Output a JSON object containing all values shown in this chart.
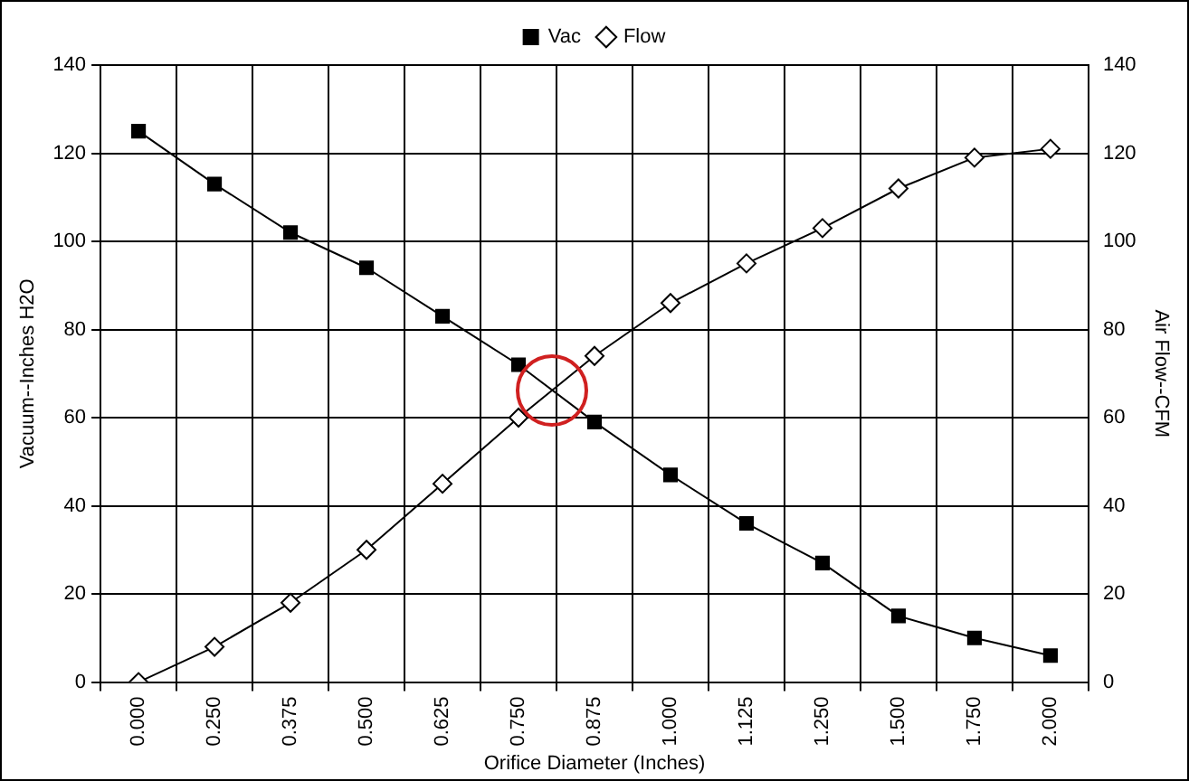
{
  "chart_data": {
    "type": "line",
    "xlabel": "Orifice Diameter (Inches)",
    "ylabel": "Vacuum--Inches H2O",
    "y2label": "Air Flow--CFM",
    "categories": [
      "0.000",
      "0.250",
      "0.375",
      "0.500",
      "0.625",
      "0.750",
      "0.875",
      "1.000",
      "1.125",
      "1.250",
      "1.500",
      "1.750",
      "2.000"
    ],
    "series": [
      {
        "name": "Vac",
        "color": "#000000",
        "marker": "square",
        "values": [
          125,
          113,
          102,
          94,
          83,
          72,
          59,
          47,
          36,
          27,
          15,
          10,
          6
        ]
      },
      {
        "name": "Flow",
        "color": "#000000",
        "marker": "diamond",
        "axis": "y2",
        "values": [
          0,
          8,
          18,
          30,
          45,
          60,
          74,
          86,
          95,
          103,
          112,
          119,
          121
        ]
      }
    ],
    "ylim": [
      0,
      140
    ],
    "yticks": [
      0,
      20,
      40,
      60,
      80,
      100,
      120,
      140
    ],
    "y2lim": [
      0,
      140
    ],
    "y2ticks": [
      0,
      20,
      40,
      60,
      80,
      100,
      120,
      140
    ],
    "grid": true,
    "legend": "top"
  }
}
